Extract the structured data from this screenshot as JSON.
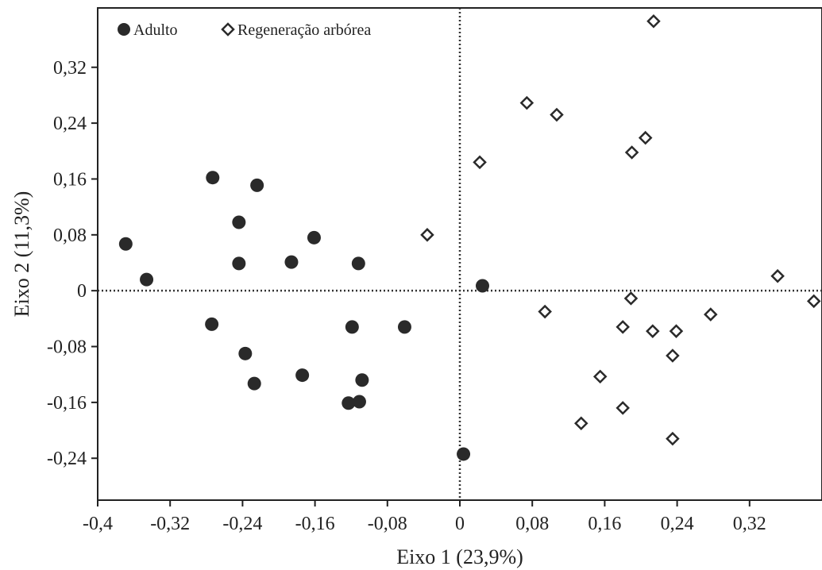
{
  "chart_data": {
    "type": "scatter",
    "xlabel": "Eixo 1 (23,9%)",
    "ylabel": "Eixo 2 (11,3%)",
    "xlim": [
      -0.4,
      0.4
    ],
    "ylim": [
      -0.3,
      0.405
    ],
    "x_ticks": [
      -0.4,
      -0.32,
      -0.24,
      -0.16,
      -0.08,
      0,
      0.08,
      0.16,
      0.24,
      0.32
    ],
    "x_tick_labels": [
      "-0,4",
      "-0,32",
      "-0,24",
      "-0,16",
      "-0,08",
      "0",
      "0,08",
      "0,16",
      "0,24",
      "0,32"
    ],
    "y_ticks": [
      0.32,
      0.24,
      0.16,
      0.08,
      0,
      -0.08,
      -0.16,
      -0.24
    ],
    "y_tick_labels": [
      "0,32",
      "0,24",
      "0,16",
      "0,08",
      "0",
      "-0,08",
      "-0,16",
      "-0,24"
    ],
    "reference_lines": {
      "x": 0,
      "y": 0,
      "style": "dotted"
    },
    "grid": false,
    "legend": {
      "placement": "top-left"
    },
    "series": [
      {
        "name": "Adulto",
        "marker": "filled-circle",
        "color": "#2a2a2a",
        "points": [
          [
            -0.369,
            0.067
          ],
          [
            -0.346,
            0.016
          ],
          [
            -0.273,
            0.162
          ],
          [
            -0.244,
            0.098
          ],
          [
            -0.244,
            0.039
          ],
          [
            -0.224,
            0.151
          ],
          [
            -0.161,
            0.076
          ],
          [
            -0.186,
            0.041
          ],
          [
            -0.112,
            0.039
          ],
          [
            -0.274,
            -0.048
          ],
          [
            -0.237,
            -0.09
          ],
          [
            -0.227,
            -0.133
          ],
          [
            -0.174,
            -0.121
          ],
          [
            -0.119,
            -0.052
          ],
          [
            -0.061,
            -0.052
          ],
          [
            -0.108,
            -0.128
          ],
          [
            -0.123,
            -0.161
          ],
          [
            -0.111,
            -0.159
          ],
          [
            0.025,
            0.007
          ],
          [
            0.004,
            -0.234
          ]
        ]
      },
      {
        "name": "Regeneração arbórea",
        "marker": "open-diamond",
        "color": "#2a2a2a",
        "points": [
          [
            0.214,
            0.386
          ],
          [
            0.074,
            0.269
          ],
          [
            0.107,
            0.252
          ],
          [
            0.205,
            0.219
          ],
          [
            0.19,
            0.198
          ],
          [
            0.022,
            0.184
          ],
          [
            -0.036,
            0.08
          ],
          [
            0.351,
            0.021
          ],
          [
            0.391,
            -0.015
          ],
          [
            0.189,
            -0.011
          ],
          [
            0.094,
            -0.03
          ],
          [
            0.18,
            -0.052
          ],
          [
            0.213,
            -0.058
          ],
          [
            0.239,
            -0.058
          ],
          [
            0.277,
            -0.034
          ],
          [
            0.235,
            -0.093
          ],
          [
            0.155,
            -0.123
          ],
          [
            0.18,
            -0.168
          ],
          [
            0.134,
            -0.19
          ],
          [
            0.235,
            -0.212
          ]
        ]
      }
    ]
  }
}
